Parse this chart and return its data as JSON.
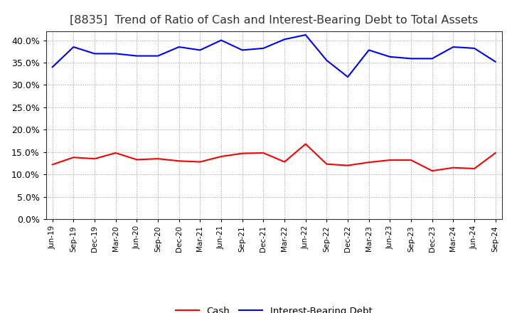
{
  "title": "[8835]  Trend of Ratio of Cash and Interest-Bearing Debt to Total Assets",
  "labels": [
    "Jun-19",
    "Sep-19",
    "Dec-19",
    "Mar-20",
    "Jun-20",
    "Sep-20",
    "Dec-20",
    "Mar-21",
    "Jun-21",
    "Sep-21",
    "Dec-21",
    "Mar-22",
    "Jun-22",
    "Sep-22",
    "Dec-22",
    "Mar-23",
    "Jun-23",
    "Sep-23",
    "Dec-23",
    "Mar-24",
    "Jun-24",
    "Sep-24"
  ],
  "cash": [
    12.2,
    13.8,
    13.5,
    14.8,
    13.3,
    13.5,
    13.0,
    12.8,
    14.0,
    14.7,
    14.8,
    12.8,
    16.8,
    12.3,
    12.0,
    12.7,
    13.2,
    13.2,
    10.8,
    11.5,
    11.3,
    14.8
  ],
  "ibd": [
    34.0,
    38.5,
    37.0,
    37.0,
    36.5,
    36.5,
    38.5,
    37.8,
    40.0,
    37.8,
    38.2,
    40.2,
    41.2,
    35.5,
    31.8,
    37.8,
    36.3,
    35.9,
    35.9,
    38.5,
    38.2,
    35.2
  ],
  "cash_color": "#ff0000",
  "ibd_color": "#0000ff",
  "background_color": "#ffffff",
  "plot_bg_color": "#ffffff",
  "grid_color": "#999999",
  "ylim_max": 42,
  "yticks": [
    0,
    5,
    10,
    15,
    20,
    25,
    30,
    35,
    40
  ],
  "title_fontsize": 11.5,
  "legend_cash": "Cash",
  "legend_ibd": "Interest-Bearing Debt"
}
